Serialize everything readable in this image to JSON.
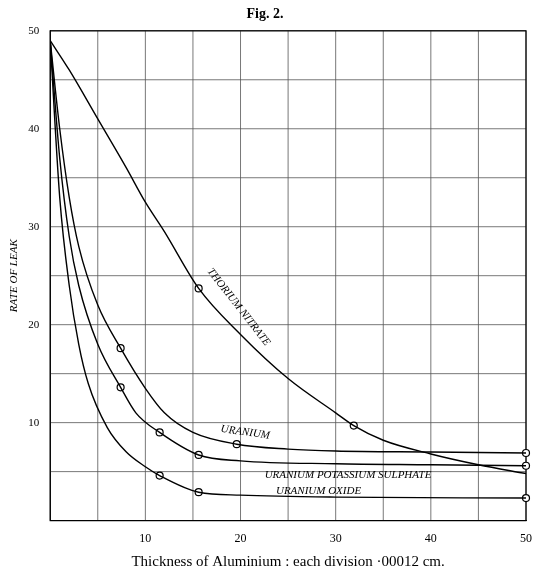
{
  "chart_data": {
    "type": "line",
    "title": "Fig. 2.",
    "x_label": "Thickness of Aluminium : each division ·00012 cm.",
    "y_label": "RATE OF LEAK",
    "xlim": [
      0,
      50
    ],
    "ylim": [
      0,
      50
    ],
    "xticks": [
      10,
      20,
      30,
      40,
      50
    ],
    "yticks": [
      10,
      20,
      30,
      40,
      50
    ],
    "grid": true,
    "series": [
      {
        "name": "THORIUM NITRATE",
        "color": "#000000",
        "marker": "circle",
        "line_style": "solid",
        "x": [
          0,
          2,
          5,
          8,
          10,
          12,
          15.6,
          20,
          25,
          30,
          31.9,
          35,
          40,
          45,
          50
        ],
        "values": [
          49,
          46,
          41,
          36,
          32.5,
          29.5,
          23.7,
          19,
          14.5,
          11,
          9.7,
          8.2,
          6.8,
          5.7,
          4.8
        ],
        "points": {
          "x": [
            15.6,
            31.9
          ],
          "values": [
            23.7,
            9.7
          ]
        }
      },
      {
        "name": "URANIUM",
        "color": "#000000",
        "marker": "circle",
        "line_style": "solid",
        "x": [
          0,
          1,
          2,
          3,
          5,
          7.4,
          10,
          12,
          15,
          19.6,
          25,
          30,
          40,
          50
        ],
        "values": [
          49,
          40,
          33,
          28,
          22,
          17.6,
          13.5,
          11,
          9,
          7.8,
          7.3,
          7.1,
          7,
          6.9
        ],
        "points": {
          "x": [
            7.4,
            19.6,
            50
          ],
          "values": [
            17.6,
            7.8,
            6.9
          ]
        }
      },
      {
        "name": "URANIUM POTASSIUM SULPHATE",
        "color": "#000000",
        "marker": "circle",
        "line_style": "solid",
        "x": [
          0,
          1,
          2,
          3,
          5,
          7.4,
          9,
          11.5,
          15.6,
          20,
          30,
          40,
          50
        ],
        "values": [
          49,
          37,
          29,
          24,
          18,
          13.6,
          11,
          9,
          6.7,
          6.1,
          5.8,
          5.7,
          5.6
        ],
        "points": {
          "x": [
            7.4,
            11.5,
            15.6,
            50
          ],
          "values": [
            13.6,
            9,
            6.7,
            5.6
          ]
        }
      },
      {
        "name": "URANIUM OXIDE",
        "color": "#000000",
        "marker": "circle",
        "line_style": "solid",
        "x": [
          0,
          1,
          2,
          3,
          4,
          6,
          8,
          10,
          11.5,
          15.6,
          20,
          30,
          50
        ],
        "values": [
          49,
          33,
          24,
          18,
          14,
          9.5,
          7,
          5.5,
          4.6,
          2.9,
          2.6,
          2.4,
          2.3
        ],
        "points": {
          "x": [
            11.5,
            15.6,
            50
          ],
          "values": [
            4.6,
            2.9,
            2.3
          ]
        }
      }
    ]
  }
}
